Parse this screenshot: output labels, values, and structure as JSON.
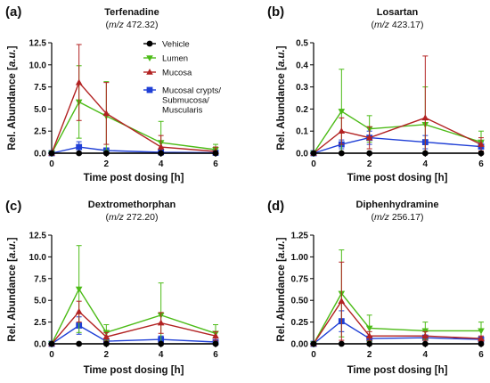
{
  "figure": {
    "x_values": [
      0,
      1,
      2,
      4,
      6
    ],
    "series_colors": {
      "Vehicle": "#000000",
      "Lumen": "#4cbb17",
      "Mucosa": "#b22222",
      "Mucosal crypts/ Submucosa/ Muscularis": "#1f3fd6"
    },
    "markers": {
      "Vehicle": "circle",
      "Lumen": "triangle-down",
      "Mucosa": "triangle-up",
      "Mucosal crypts/ Submucosa/ Muscularis": "square"
    },
    "legend": {
      "entries": [
        "Vehicle",
        "Lumen",
        "Mucosa",
        "Mucosal crypts/ Submucosa/ Muscularis"
      ],
      "label_lines": [
        [
          "Vehicle"
        ],
        [
          "Lumen"
        ],
        [
          "Mucosa"
        ],
        [
          "Mucosal crypts/",
          "Submucosa/",
          "Muscularis"
        ]
      ]
    }
  },
  "chart_data": [
    {
      "type": "line",
      "panel": "(a)",
      "title": "Terfenadine",
      "subtitle": "(m/z 472.32)",
      "subtitle_parts": [
        "(",
        "m/z",
        " 472.32)"
      ],
      "xlabel": "Time post dosing [h]",
      "ylabel": "Rel. Abundance [a.u.]",
      "ylabel_parts": [
        "Rel. Abundance [",
        "a.u.",
        "]"
      ],
      "xlim": [
        0,
        6
      ],
      "ylim": [
        0,
        12.5
      ],
      "xticks": [
        0,
        2,
        4,
        6
      ],
      "yticks": [
        0.0,
        2.5,
        5.0,
        7.5,
        10.0,
        12.5
      ],
      "ytick_labels": [
        "0.0",
        "2.5",
        "5.0",
        "7.5",
        "10.0",
        "12.5"
      ],
      "legend": "top-right",
      "series": [
        {
          "name": "Vehicle",
          "x": [
            0,
            1,
            2,
            4,
            6
          ],
          "y": [
            0,
            0,
            0,
            0,
            0
          ],
          "err": [
            0,
            0,
            0,
            0,
            0
          ]
        },
        {
          "name": "Lumen",
          "x": [
            0,
            1,
            2,
            4,
            6
          ],
          "y": [
            0,
            5.8,
            4.2,
            1.2,
            0.4
          ],
          "err": [
            0,
            4.1,
            3.9,
            2.4,
            0.6
          ]
        },
        {
          "name": "Mucosa",
          "x": [
            0,
            1,
            2,
            4,
            6
          ],
          "y": [
            0,
            8.0,
            4.5,
            0.7,
            0.2
          ],
          "err": [
            0,
            4.3,
            3.5,
            1.3,
            0.5
          ]
        },
        {
          "name": "Mucosal crypts/ Submucosa/ Muscularis",
          "x": [
            0,
            1,
            2,
            4,
            6
          ],
          "y": [
            0,
            0.7,
            0.3,
            0.1,
            0.05
          ],
          "err": [
            0,
            0.6,
            0.3,
            0.15,
            0.05
          ]
        }
      ]
    },
    {
      "type": "line",
      "panel": "(b)",
      "title": "Losartan",
      "subtitle": "(m/z 423.17)",
      "subtitle_parts": [
        "(",
        "m/z",
        " 423.17)"
      ],
      "xlabel": "Time post dosing [h]",
      "ylabel": "Rel. Abundance [a.u.]",
      "ylabel_parts": [
        "Rel. Abundance [",
        "a.u.",
        "]"
      ],
      "xlim": [
        0,
        6
      ],
      "ylim": [
        0,
        0.5
      ],
      "xticks": [
        0,
        2,
        4,
        6
      ],
      "yticks": [
        0.0,
        0.1,
        0.2,
        0.3,
        0.4,
        0.5
      ],
      "ytick_labels": [
        "0.0",
        "0.1",
        "0.2",
        "0.3",
        "0.4",
        "0.5"
      ],
      "series": [
        {
          "name": "Vehicle",
          "x": [
            0,
            1,
            2,
            4,
            6
          ],
          "y": [
            0,
            0,
            0,
            0,
            0
          ],
          "err": [
            0,
            0,
            0,
            0,
            0
          ]
        },
        {
          "name": "Lumen",
          "x": [
            0,
            1,
            2,
            4,
            6
          ],
          "y": [
            0,
            0.19,
            0.11,
            0.13,
            0.05
          ],
          "err": [
            0,
            0.19,
            0.06,
            0.17,
            0.05
          ]
        },
        {
          "name": "Mucosa",
          "x": [
            0,
            1,
            2,
            4,
            6
          ],
          "y": [
            0,
            0.1,
            0.07,
            0.16,
            0.04
          ],
          "err": [
            0,
            0.06,
            0.05,
            0.28,
            0.03
          ]
        },
        {
          "name": "Mucosal crypts/ Submucosa/ Muscularis",
          "x": [
            0,
            1,
            2,
            4,
            6
          ],
          "y": [
            0,
            0.04,
            0.07,
            0.05,
            0.03
          ],
          "err": [
            0,
            0.02,
            0.03,
            0.03,
            0.02
          ]
        }
      ]
    },
    {
      "type": "line",
      "panel": "(c)",
      "title": "Dextromethorphan",
      "subtitle": "(m/z 272.20)",
      "subtitle_parts": [
        "(",
        "m/z",
        " 272.20)"
      ],
      "xlabel": "Time post dosing [h]",
      "ylabel": "Rel. Abundance [a.u.]",
      "ylabel_parts": [
        "Rel. Abundance [",
        "a.u.",
        "]"
      ],
      "xlim": [
        0,
        6
      ],
      "ylim": [
        0,
        12.5
      ],
      "xticks": [
        0,
        2,
        4,
        6
      ],
      "yticks": [
        0.0,
        2.5,
        5.0,
        7.5,
        10.0,
        12.5
      ],
      "ytick_labels": [
        "0.0",
        "2.5",
        "5.0",
        "7.5",
        "10.0",
        "12.5"
      ],
      "series": [
        {
          "name": "Vehicle",
          "x": [
            0,
            1,
            2,
            4,
            6
          ],
          "y": [
            0,
            0,
            0,
            0,
            0
          ],
          "err": [
            0,
            0,
            0,
            0,
            0
          ]
        },
        {
          "name": "Lumen",
          "x": [
            0,
            1,
            2,
            4,
            6
          ],
          "y": [
            0,
            6.3,
            1.3,
            3.3,
            1.2
          ],
          "err": [
            0,
            5.0,
            0.9,
            3.7,
            1.0
          ]
        },
        {
          "name": "Mucosa",
          "x": [
            0,
            1,
            2,
            4,
            6
          ],
          "y": [
            0,
            3.7,
            0.8,
            2.4,
            0.9
          ],
          "err": [
            0,
            1.2,
            0.5,
            1.2,
            0.5
          ]
        },
        {
          "name": "Mucosal crypts/ Submucosa/ Muscularis",
          "x": [
            0,
            1,
            2,
            4,
            6
          ],
          "y": [
            0,
            2.1,
            0.3,
            0.5,
            0.2
          ],
          "err": [
            0,
            1.0,
            0.2,
            0.4,
            0.1
          ]
        }
      ]
    },
    {
      "type": "line",
      "panel": "(d)",
      "title": "Diphenhydramine",
      "subtitle": "(m/z 256.17)",
      "subtitle_parts": [
        "(",
        "m/z",
        " 256.17)"
      ],
      "xlabel": "Time post dosing [h]",
      "ylabel": "Rel. Abundance [a.u.]",
      "ylabel_parts": [
        "Rel. Abundance [",
        "a.u.",
        "]"
      ],
      "xlim": [
        0,
        6
      ],
      "ylim": [
        0,
        1.25
      ],
      "xticks": [
        0,
        2,
        4,
        6
      ],
      "yticks": [
        0.0,
        0.25,
        0.5,
        0.75,
        1.0,
        1.25
      ],
      "ytick_labels": [
        "0.00",
        "0.25",
        "0.50",
        "0.75",
        "1.00",
        "1.25"
      ],
      "series": [
        {
          "name": "Vehicle",
          "x": [
            0,
            1,
            2,
            4,
            6
          ],
          "y": [
            0,
            0,
            0,
            0,
            0
          ],
          "err": [
            0,
            0,
            0,
            0,
            0
          ]
        },
        {
          "name": "Lumen",
          "x": [
            0,
            1,
            2,
            4,
            6
          ],
          "y": [
            0,
            0.58,
            0.18,
            0.15,
            0.15
          ],
          "err": [
            0,
            0.5,
            0.15,
            0.1,
            0.1
          ]
        },
        {
          "name": "Mucosa",
          "x": [
            0,
            1,
            2,
            4,
            6
          ],
          "y": [
            0,
            0.49,
            0.09,
            0.09,
            0.06
          ],
          "err": [
            0,
            0.45,
            0.05,
            0.05,
            0.03
          ]
        },
        {
          "name": "Mucosal crypts/ Submucosa/ Muscularis",
          "x": [
            0,
            1,
            2,
            4,
            6
          ],
          "y": [
            0,
            0.26,
            0.06,
            0.07,
            0.05
          ],
          "err": [
            0,
            0.12,
            0.03,
            0.03,
            0.02
          ]
        }
      ]
    }
  ]
}
